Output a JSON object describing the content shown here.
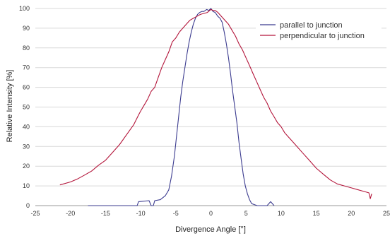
{
  "chart_data": {
    "type": "line",
    "title": "",
    "xlabel": "Divergence Angle [°]",
    "ylabel": "Relative Intensity [%]",
    "xlim": [
      -25,
      25
    ],
    "ylim": [
      0,
      100
    ],
    "xticks": [
      -25,
      -20,
      -15,
      -10,
      -5,
      0,
      5,
      10,
      15,
      20,
      25
    ],
    "yticks": [
      0,
      10,
      20,
      30,
      40,
      50,
      60,
      70,
      80,
      90,
      100
    ],
    "grid": "horizontal",
    "legend": "top-right",
    "series": [
      {
        "name": "parallel to junction",
        "color": "#3b3b8f",
        "x": [
          -17.5,
          -10.5,
          -10.3,
          -8.8,
          -8.5,
          -8.2,
          -8.0,
          -7.2,
          -6.5,
          -6.0,
          -5.6,
          -5.2,
          -4.9,
          -4.6,
          -4.3,
          -4.0,
          -3.7,
          -3.4,
          -3.1,
          -2.8,
          -2.5,
          -2.2,
          -1.9,
          -1.6,
          -1.3,
          -1.0,
          -0.6,
          -0.3,
          0.0,
          0.3,
          0.6,
          1.0,
          1.3,
          1.6,
          1.9,
          2.2,
          2.5,
          2.8,
          3.1,
          3.4,
          3.7,
          4.0,
          4.3,
          4.6,
          4.9,
          5.2,
          5.5,
          5.8,
          6.2,
          6.6,
          7.0,
          7.5,
          8.0,
          8.5,
          9.0
        ],
        "y": [
          0,
          0,
          2,
          2.5,
          0,
          0,
          2.5,
          3,
          5,
          8,
          15,
          25,
          35,
          45,
          55,
          63,
          70,
          77,
          83,
          88,
          92,
          95,
          97,
          98,
          98.5,
          98.5,
          99.5,
          99,
          100,
          98.5,
          98,
          96,
          95,
          93,
          88,
          82,
          75,
          67,
          58,
          50,
          42,
          32,
          24,
          16,
          10,
          6,
          3,
          1,
          0.5,
          0,
          0,
          0,
          0,
          2,
          0
        ]
      },
      {
        "name": "perpendicular to junction",
        "color": "#b3153a",
        "x": [
          -21.5,
          -20,
          -19,
          -18,
          -17,
          -16,
          -15,
          -14,
          -13,
          -12,
          -11,
          -10.3,
          -10,
          -9.5,
          -9,
          -8.5,
          -8,
          -7.5,
          -7,
          -6.5,
          -6,
          -5.5,
          -5,
          -4.5,
          -4,
          -3.5,
          -3,
          -2.5,
          -2,
          -1.5,
          -1,
          -0.5,
          0,
          0.3,
          0.6,
          1,
          1.5,
          2,
          2.5,
          3,
          3.5,
          4,
          4.5,
          5,
          5.5,
          6,
          6.5,
          7,
          7.5,
          8,
          8.5,
          9,
          9.5,
          10,
          10.5,
          11,
          11.5,
          12,
          12.5,
          13,
          14,
          15,
          16,
          17,
          18,
          19,
          20,
          21,
          22,
          22.5,
          22.7,
          22.9
        ],
        "y": [
          10.5,
          12,
          13.5,
          15.5,
          17.5,
          20.5,
          23,
          27,
          31,
          36,
          41,
          46,
          48,
          51,
          54,
          58,
          60,
          65,
          70,
          74,
          78,
          83,
          85,
          88,
          90,
          92,
          94,
          95,
          96,
          97,
          97.5,
          98,
          99.5,
          99,
          99,
          98,
          96,
          94,
          92,
          89,
          86,
          82,
          79,
          75,
          71,
          67,
          63,
          59,
          55,
          52,
          48,
          45,
          42,
          40,
          37,
          35,
          33,
          31,
          29,
          27,
          23,
          19,
          16,
          13,
          11,
          10,
          9,
          8,
          7,
          6.5,
          3.5,
          6
        ]
      }
    ]
  }
}
